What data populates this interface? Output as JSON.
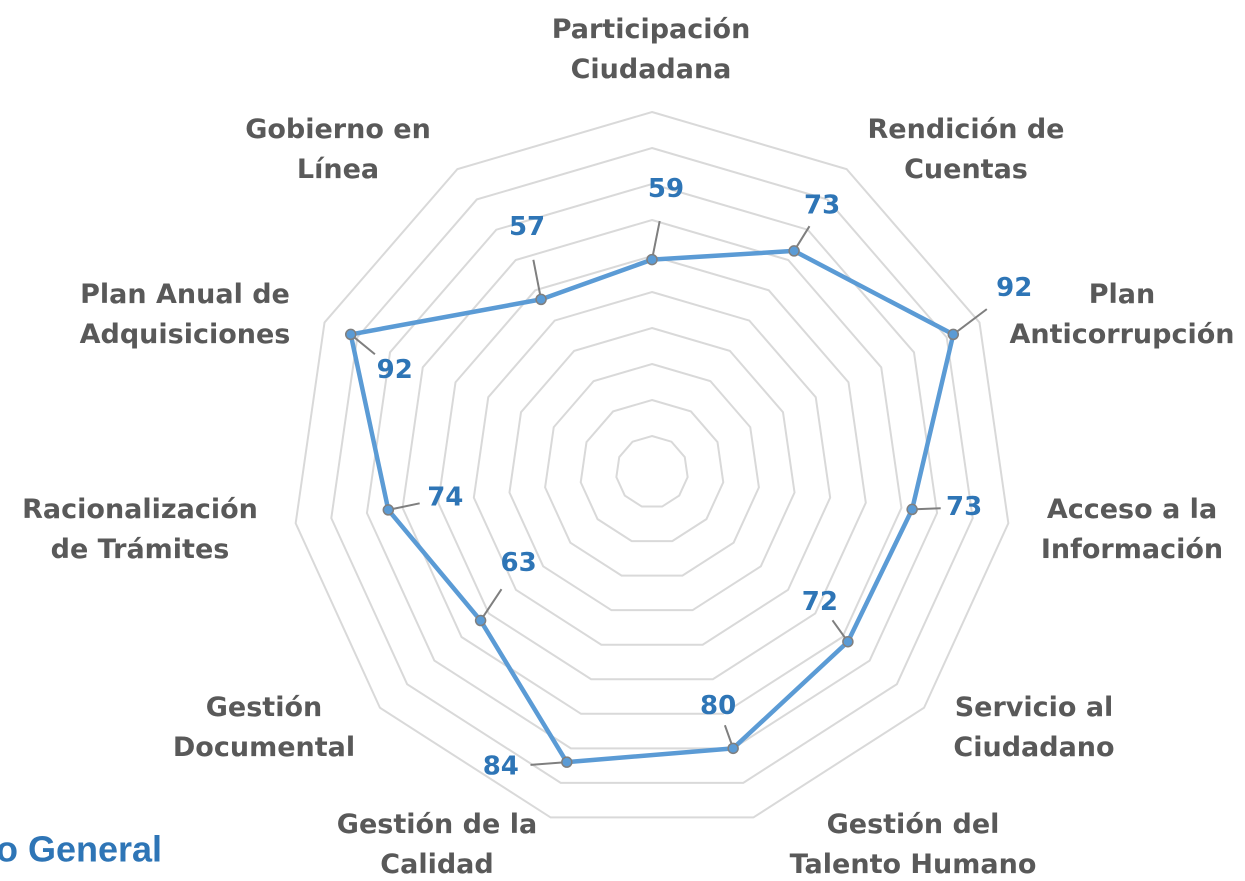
{
  "chart_data": {
    "type": "radar",
    "categories": [
      "Participación\nCiudadana",
      "Rendición de\nCuentas",
      "Plan\nAnticorrupción",
      "Acceso a la\nInformación",
      "Servicio al\nCiudadano",
      "Gestión del\nTalento Humano",
      "Gestión de la\nCalidad",
      "Gestión\nDocumental",
      "Racionalización\nde Trámites",
      "Plan Anual de\nAdquisiciones",
      "Gobierno en\nLínea"
    ],
    "values": [
      59,
      73,
      92,
      73,
      72,
      80,
      84,
      63,
      74,
      92,
      57
    ],
    "color": "#5b9bd5",
    "label_color": "#2e75b6",
    "rlim": [
      0,
      100
    ],
    "rticks": [
      10,
      20,
      30,
      40,
      50,
      60,
      70,
      80,
      90,
      100
    ],
    "grid": true,
    "caption": "o General"
  }
}
